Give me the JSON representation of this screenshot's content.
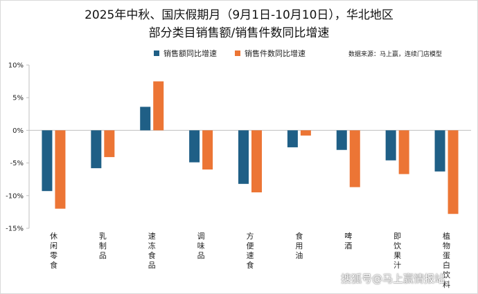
{
  "title_line1": "2025年中秋、国庆假期月（9月1日-10月10日），华北地区",
  "title_line2": "部分类目销售额/销售件数同比增速",
  "source": "数据来源：马上赢，连续门店模型",
  "watermark": "搜狐号@马上赢情报站",
  "colors": {
    "sales": "#1f5f86",
    "units": "#ec7535",
    "axis": "#bfbfbf"
  },
  "chart_data": {
    "type": "bar",
    "categories": [
      "休闲零食",
      "乳制品",
      "速冻食品",
      "调味品",
      "方便速食",
      "食用油",
      "啤酒",
      "即饮果汁",
      "植物蛋白饮料"
    ],
    "series": [
      {
        "name": "销售额同比增速",
        "values": [
          -9.3,
          -5.8,
          3.6,
          -4.9,
          -8.2,
          -2.6,
          -3.0,
          -4.6,
          -6.3
        ]
      },
      {
        "name": "销售件数同比增速",
        "values": [
          -12.0,
          -4.1,
          7.5,
          -6.0,
          -9.5,
          -0.8,
          -8.7,
          -6.7,
          -12.8
        ]
      }
    ],
    "yticks": [
      "10%",
      "5%",
      "0%",
      "-5%",
      "-10%",
      "-15%"
    ],
    "ytick_values": [
      10,
      5,
      0,
      -5,
      -10,
      -15
    ],
    "ylim": [
      -15,
      10
    ],
    "legend": "top",
    "grid": false
  }
}
